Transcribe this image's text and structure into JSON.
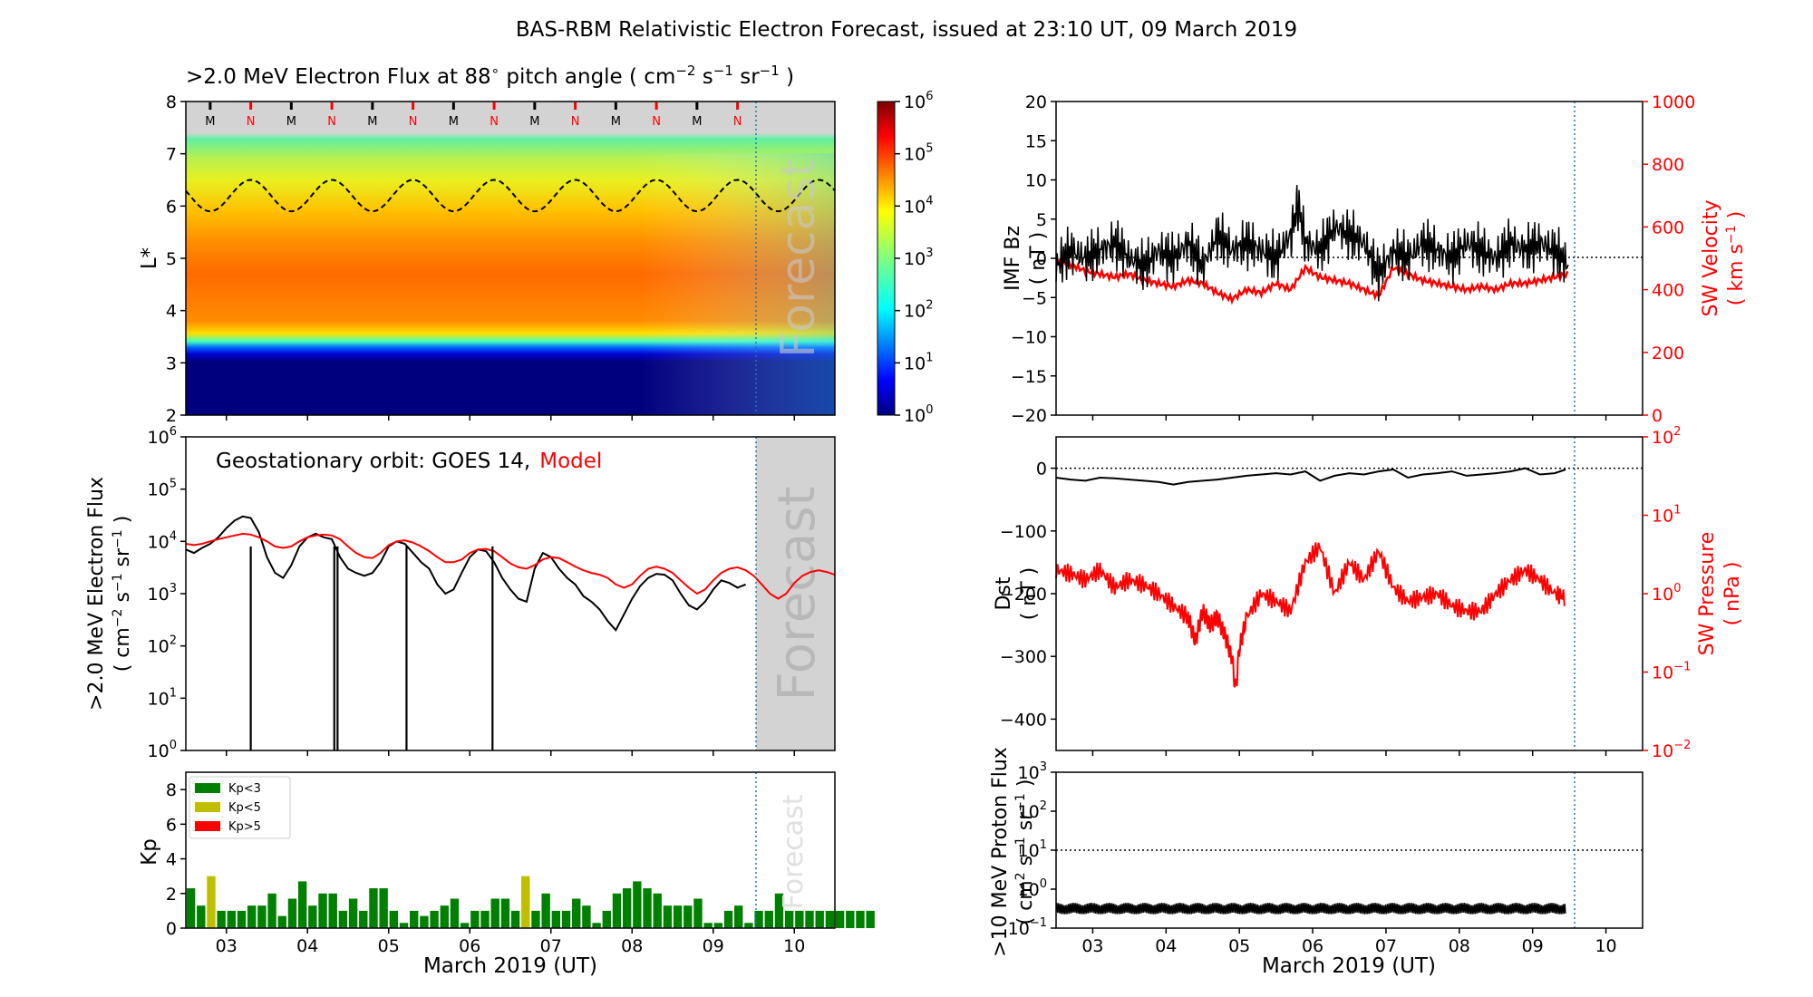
{
  "title": "BAS-RBM Relativistic Electron Forecast, issued at 23:10 UT, 09 March 2019",
  "colors": {
    "black": "#000000",
    "model_red": "#ff0000",
    "kp_green": "#008000",
    "kp_yellow": "#bfbf00",
    "kp_red": "#ff0000",
    "forecast_line": "#1f77b4",
    "forecast_shade": "#d3d3d3"
  },
  "chart_data": [
    {
      "id": "lstar_flux",
      "type": "heatmap",
      "title_prefix": ">2.0 MeV Electron Flux at 88",
      "title_sup": "∘",
      "title_suffix": " pitch angle ( cm",
      "title_units": [
        "−2",
        " s",
        "−1",
        " sr",
        "−1",
        " )"
      ],
      "ylabel": "L*",
      "ylim": [
        2,
        8
      ],
      "yticks": [
        "2",
        "3",
        "4",
        "5",
        "6",
        "7",
        "8"
      ],
      "forecast_label": "Forecast",
      "mn_markers": [
        "M",
        "N",
        "M",
        "N",
        "M",
        "N",
        "M",
        "N",
        "M",
        "N",
        "M",
        "N",
        "M",
        "N"
      ],
      "colorbar": {
        "scale": "log",
        "range": [
          1,
          1000000
        ],
        "ticks": [
          {
            "base": "10",
            "exp": "0"
          },
          {
            "base": "10",
            "exp": "1"
          },
          {
            "base": "10",
            "exp": "2"
          },
          {
            "base": "10",
            "exp": "3"
          },
          {
            "base": "10",
            "exp": "4"
          },
          {
            "base": "10",
            "exp": "5"
          },
          {
            "base": "10",
            "exp": "6"
          }
        ]
      },
      "no_data_above_L": 7,
      "dashed_contour_L_range": [
        5.9,
        6.5
      ]
    },
    {
      "id": "geo_flux",
      "type": "line",
      "annotation_text": "Geostationary orbit:   GOES 14,",
      "annotation_model": "Model",
      "ylabel_line1": ">2.0 MeV Electron Flux",
      "ylabel_line2_parts": [
        "( cm",
        "−2",
        " s",
        "−1",
        " sr",
        "−1",
        " )"
      ],
      "yscale": "log",
      "ylim": [
        1,
        1000000
      ],
      "yticks": [
        {
          "base": "10",
          "exp": "0"
        },
        {
          "base": "10",
          "exp": "1"
        },
        {
          "base": "10",
          "exp": "2"
        },
        {
          "base": "10",
          "exp": "3"
        },
        {
          "base": "10",
          "exp": "4"
        },
        {
          "base": "10",
          "exp": "5"
        },
        {
          "base": "10",
          "exp": "6"
        }
      ],
      "forecast_label": "Forecast",
      "series": [
        {
          "name": "GOES 14",
          "color": "#000000",
          "x": [
            2.5,
            2.6,
            2.7,
            2.8,
            2.9,
            3.0,
            3.1,
            3.2,
            3.3,
            3.4,
            3.5,
            3.6,
            3.7,
            3.8,
            3.9,
            4.0,
            4.1,
            4.2,
            4.3,
            4.4,
            4.5,
            4.6,
            4.7,
            4.8,
            4.9,
            5.0,
            5.1,
            5.2,
            5.3,
            5.4,
            5.5,
            5.6,
            5.7,
            5.8,
            5.9,
            6.0,
            6.1,
            6.2,
            6.3,
            6.4,
            6.5,
            6.6,
            6.7,
            6.8,
            6.9,
            7.0,
            7.1,
            7.2,
            7.3,
            7.4,
            7.5,
            7.6,
            7.7,
            7.8,
            7.9,
            8.0,
            8.1,
            8.2,
            8.3,
            8.4,
            8.5,
            8.6,
            8.7,
            8.8,
            8.9,
            9.0,
            9.1,
            9.2,
            9.3,
            9.4
          ],
          "values": [
            7000,
            6000,
            7500,
            9000,
            12000,
            18000,
            25000,
            30000,
            28000,
            15000,
            5000,
            2500,
            2000,
            3500,
            8000,
            12000,
            14000,
            12000,
            11000,
            5000,
            3000,
            2500,
            2200,
            2500,
            4000,
            8000,
            10000,
            9000,
            6000,
            4000,
            3000,
            1500,
            1000,
            1200,
            2500,
            5000,
            7000,
            6500,
            4000,
            2000,
            1200,
            800,
            700,
            3000,
            6000,
            5000,
            3000,
            2000,
            1500,
            900,
            700,
            500,
            300,
            200,
            400,
            800,
            1400,
            2000,
            2400,
            2300,
            1800,
            1000,
            600,
            500,
            700,
            1200,
            1800,
            1600,
            1300,
            1500
          ]
        },
        {
          "name": "Model",
          "color": "#ff0000",
          "x": [
            2.5,
            2.6,
            2.7,
            2.8,
            2.9,
            3.0,
            3.1,
            3.2,
            3.3,
            3.4,
            3.5,
            3.6,
            3.7,
            3.8,
            3.9,
            4.0,
            4.1,
            4.2,
            4.3,
            4.4,
            4.5,
            4.6,
            4.7,
            4.8,
            4.9,
            5.0,
            5.1,
            5.2,
            5.3,
            5.4,
            5.5,
            5.6,
            5.7,
            5.8,
            5.9,
            6.0,
            6.1,
            6.2,
            6.3,
            6.4,
            6.5,
            6.6,
            6.7,
            6.8,
            6.9,
            7.0,
            7.1,
            7.2,
            7.3,
            7.4,
            7.5,
            7.6,
            7.7,
            7.8,
            7.9,
            8.0,
            8.1,
            8.2,
            8.3,
            8.4,
            8.5,
            8.6,
            8.7,
            8.8,
            8.9,
            9.0,
            9.1,
            9.2,
            9.3,
            9.4,
            9.5,
            9.6,
            9.7,
            9.8,
            9.9,
            10.0,
            10.1,
            10.2,
            10.3,
            10.4,
            10.5
          ],
          "values": [
            9000,
            8500,
            9000,
            10000,
            11000,
            12000,
            13000,
            14000,
            13500,
            12000,
            10000,
            8000,
            7500,
            8000,
            10000,
            12000,
            13000,
            13500,
            13000,
            11000,
            8000,
            6000,
            5000,
            4800,
            6000,
            8500,
            10000,
            10500,
            9500,
            8000,
            6500,
            5000,
            4000,
            4000,
            4500,
            6000,
            7000,
            7200,
            6500,
            5000,
            3800,
            3200,
            3000,
            3500,
            4500,
            5000,
            4800,
            4000,
            3300,
            2800,
            2500,
            2300,
            2000,
            1500,
            1300,
            1500,
            2200,
            3000,
            3300,
            3000,
            2500,
            1800,
            1300,
            1000,
            1200,
            1800,
            2500,
            3000,
            3200,
            2800,
            2200,
            1500,
            1000,
            800,
            1000,
            1600,
            2200,
            2600,
            2800,
            2600,
            2300
          ]
        }
      ],
      "dropouts_x": [
        3.3,
        4.33,
        4.37,
        5.22,
        6.28
      ]
    },
    {
      "id": "kp",
      "type": "bar",
      "ylabel": "Kp",
      "ylim": [
        0,
        9
      ],
      "yticks": [
        "0",
        "2",
        "4",
        "6",
        "8"
      ],
      "forecast_label": "Forecast",
      "legend": [
        {
          "label": "Kp<3",
          "color": "#008000"
        },
        {
          "label": "Kp<5",
          "color": "#bfbf00"
        },
        {
          "label": "Kp>5",
          "color": "#ff0000"
        }
      ],
      "x_start": 2.5,
      "bin_days": 0.125,
      "values": [
        2.3,
        1.3,
        3.0,
        1.0,
        1.0,
        1.0,
        1.3,
        1.3,
        2.0,
        0.7,
        1.7,
        2.7,
        1.3,
        2.0,
        2.0,
        1.0,
        1.7,
        1.0,
        2.3,
        2.3,
        1.0,
        0.3,
        1.0,
        0.7,
        1.0,
        1.3,
        1.7,
        0.3,
        1.0,
        1.0,
        1.7,
        1.7,
        1.0,
        3.0,
        1.0,
        2.0,
        1.0,
        1.0,
        1.7,
        1.3,
        0.3,
        1.0,
        2.0,
        2.3,
        2.7,
        2.3,
        2.0,
        1.3,
        1.3,
        1.3,
        1.7,
        0.3,
        0.3,
        1.0,
        1.3,
        0.3,
        1.0,
        1.0,
        2.0,
        1.0,
        1.0,
        1.0,
        1.0,
        1.0,
        1.0,
        1.0,
        1.0,
        1.0
      ],
      "value_colors_note": "values >= 3 shown yellow (Kp<5), < 3 green (Kp<3)"
    },
    {
      "id": "imf_bz",
      "type": "line",
      "ylabel_left_1": "IMF Bz",
      "ylabel_left_2": "( nT )",
      "ylim_left": [
        -20,
        20
      ],
      "yticks_left": [
        "−20",
        "−15",
        "−10",
        "−5",
        "0",
        "5",
        "10",
        "15",
        "20"
      ],
      "ylabel_right_1": "SW Velocity",
      "ylabel_right_2_parts": [
        "( km s",
        "−1",
        " )"
      ],
      "ylim_right": [
        0,
        1000
      ],
      "yticks_right": [
        "0",
        "200",
        "400",
        "600",
        "800",
        "1000"
      ],
      "series": [
        {
          "name": "IMF Bz",
          "color": "#000000",
          "x": [
            2.5,
            2.7,
            2.9,
            3.1,
            3.3,
            3.5,
            3.7,
            3.9,
            4.1,
            4.3,
            4.5,
            4.7,
            4.9,
            5.1,
            5.3,
            5.5,
            5.7,
            5.8,
            5.9,
            6.1,
            6.3,
            6.5,
            6.7,
            6.9,
            7.1,
            7.3,
            7.5,
            7.7,
            7.9,
            8.1,
            8.3,
            8.5,
            8.7,
            8.9,
            9.1,
            9.3,
            9.5
          ],
          "values": [
            -1,
            1,
            0,
            1,
            2,
            0,
            -1,
            1,
            0,
            2,
            -1,
            3,
            1,
            2,
            1,
            0,
            3,
            7,
            2,
            1,
            4,
            3,
            2,
            -2,
            1,
            0,
            2,
            1,
            0,
            2,
            1,
            0,
            2,
            1,
            2,
            1,
            -1
          ]
        },
        {
          "name": "SW Velocity",
          "color": "#ff0000",
          "x": [
            2.5,
            2.7,
            2.9,
            3.1,
            3.3,
            3.5,
            3.7,
            3.9,
            4.1,
            4.3,
            4.5,
            4.7,
            4.9,
            5.1,
            5.3,
            5.5,
            5.7,
            5.9,
            6.1,
            6.3,
            6.5,
            6.7,
            6.9,
            7.1,
            7.3,
            7.5,
            7.7,
            7.9,
            8.1,
            8.3,
            8.5,
            8.7,
            8.9,
            9.1,
            9.3,
            9.5
          ],
          "values": [
            490,
            480,
            460,
            450,
            440,
            450,
            430,
            420,
            410,
            430,
            420,
            390,
            370,
            400,
            390,
            420,
            400,
            470,
            440,
            430,
            420,
            400,
            380,
            470,
            450,
            430,
            420,
            410,
            400,
            410,
            400,
            420,
            420,
            430,
            440,
            450
          ]
        }
      ],
      "zero_line": 0
    },
    {
      "id": "dst",
      "type": "line",
      "ylabel_left_1": "Dst",
      "ylabel_left_2": "( nT )",
      "ylim_left": [
        -450,
        50
      ],
      "yticks_left": [
        "0",
        "−100",
        "−200",
        "−300",
        "−400"
      ],
      "ylabel_right_1": "SW Pressure",
      "ylabel_right_2": "( nPa )",
      "yscale_right": "log",
      "ylim_right": [
        0.01,
        100
      ],
      "yticks_right": [
        {
          "base": "10",
          "exp": "−2"
        },
        {
          "base": "10",
          "exp": "−1"
        },
        {
          "base": "10",
          "exp": "0"
        },
        {
          "base": "10",
          "exp": "1"
        },
        {
          "base": "10",
          "exp": "2"
        }
      ],
      "series": [
        {
          "name": "Dst",
          "color": "#000000",
          "x": [
            2.5,
            2.7,
            2.9,
            3.1,
            3.3,
            3.5,
            3.7,
            3.9,
            4.1,
            4.3,
            4.5,
            4.7,
            4.9,
            5.1,
            5.3,
            5.5,
            5.7,
            5.9,
            6.1,
            6.3,
            6.5,
            6.7,
            6.9,
            7.1,
            7.3,
            7.5,
            7.7,
            7.9,
            8.1,
            8.3,
            8.5,
            8.7,
            8.9,
            9.1,
            9.3,
            9.45
          ],
          "values": [
            -15,
            -18,
            -20,
            -15,
            -16,
            -18,
            -20,
            -22,
            -26,
            -22,
            -20,
            -18,
            -15,
            -12,
            -10,
            -8,
            -10,
            -5,
            -20,
            -12,
            -8,
            -10,
            -5,
            -2,
            -15,
            -10,
            -8,
            -5,
            -12,
            -10,
            -8,
            -5,
            0,
            -10,
            -8,
            -2
          ]
        },
        {
          "name": "SW Pressure",
          "color": "#ff0000",
          "x": [
            2.5,
            2.7,
            2.9,
            3.1,
            3.3,
            3.5,
            3.7,
            3.9,
            4.1,
            4.3,
            4.4,
            4.5,
            4.6,
            4.7,
            4.8,
            4.9,
            4.95,
            5.0,
            5.1,
            5.3,
            5.5,
            5.7,
            5.9,
            6.1,
            6.3,
            6.5,
            6.7,
            6.9,
            7.1,
            7.3,
            7.5,
            7.7,
            7.9,
            8.1,
            8.3,
            8.5,
            8.7,
            8.9,
            9.1,
            9.3,
            9.45
          ],
          "values": [
            2.0,
            1.8,
            1.5,
            2.0,
            1.2,
            1.5,
            1.3,
            1.0,
            0.7,
            0.5,
            0.25,
            0.6,
            0.4,
            0.5,
            0.3,
            0.15,
            0.06,
            0.2,
            0.5,
            1.0,
            0.8,
            0.6,
            2.5,
            4.0,
            1.0,
            2.5,
            1.5,
            3.5,
            1.2,
            0.8,
            0.9,
            1.0,
            0.7,
            0.6,
            0.6,
            1.0,
            1.5,
            2.0,
            1.5,
            1.0,
            0.9
          ]
        }
      ],
      "zero_line": 0
    },
    {
      "id": "proton_flux",
      "type": "line",
      "ylabel_1": ">10 MeV Proton Flux",
      "ylabel_2_parts": [
        "( cm",
        "2",
        " s",
        "−1",
        " sr",
        "−1",
        " )"
      ],
      "yscale": "log",
      "ylim": [
        0.1,
        1000
      ],
      "yticks": [
        {
          "base": "10",
          "exp": "−1"
        },
        {
          "base": "10",
          "exp": "0"
        },
        {
          "base": "10",
          "exp": "1"
        },
        {
          "base": "10",
          "exp": "2"
        },
        {
          "base": "10",
          "exp": "3"
        }
      ],
      "threshold": 10,
      "series": [
        {
          "name": ">10 MeV Proton Flux",
          "color": "#000000",
          "x_range": [
            2.5,
            9.45
          ],
          "typical_value": 0.3
        }
      ]
    }
  ],
  "x_axis": {
    "xlim": [
      2.5,
      10.5
    ],
    "forecast_x": 9.46,
    "ticks": [
      "03",
      "04",
      "05",
      "06",
      "07",
      "08",
      "09",
      "10"
    ],
    "tick_values": [
      3,
      4,
      5,
      6,
      7,
      8,
      9,
      10
    ],
    "label": "March 2019 (UT)"
  }
}
